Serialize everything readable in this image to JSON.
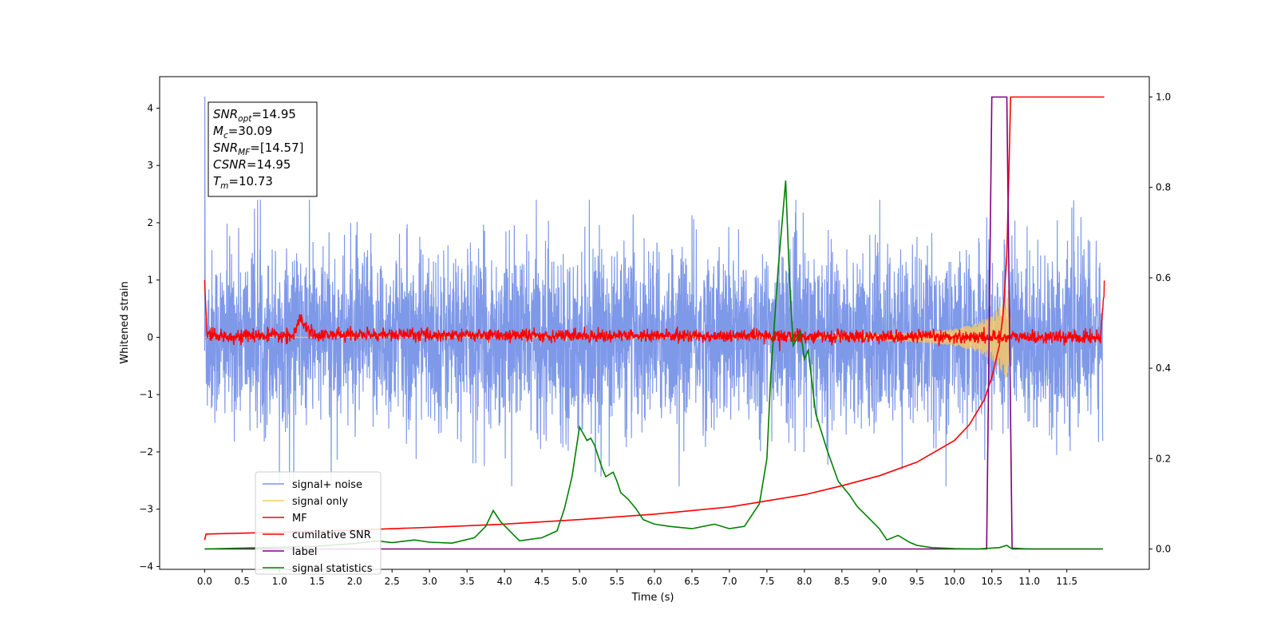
{
  "chart_data": {
    "type": "line",
    "xlabel": "Time (s)",
    "ylabel": "Whitened strain",
    "xlim": [
      -0.6,
      12.6
    ],
    "ylim_left": [
      -4.05,
      4.55
    ],
    "ylim_right": [
      -0.045,
      1.045
    ],
    "x_ticks": [
      "0.0",
      "0.5",
      "1.0",
      "1.5",
      "2.0",
      "2.5",
      "3.0",
      "3.5",
      "4.0",
      "4.5",
      "5.0",
      "5.5",
      "6.0",
      "6.5",
      "7.0",
      "7.5",
      "8.0",
      "8.5",
      "9.0",
      "9.5",
      "10.0",
      "10.5",
      "11.0",
      "11.5"
    ],
    "y_ticks_left": [
      "4",
      "3",
      "2",
      "1",
      "0",
      "−1",
      "−2",
      "−3",
      "−4"
    ],
    "y_ticks_right": [
      "1.0",
      "0.8",
      "0.6",
      "0.4",
      "0.2",
      "0.0"
    ],
    "grid": false,
    "legend_position": "lower-left",
    "annotations": [
      {
        "sym": "SNR",
        "sub": "opt",
        "text": "=14.95"
      },
      {
        "sym": "M",
        "sub": "c",
        "text": "=30.09"
      },
      {
        "sym": "SNR",
        "sub": "MF",
        "text": "=[14.57]"
      },
      {
        "sym": "CSNR",
        "sub": "",
        "text": "=14.95"
      },
      {
        "sym": "T",
        "sub": "m",
        "text": "=10.73"
      }
    ],
    "series": [
      {
        "name": "signal+ noise",
        "axis": "left",
        "color": "#7893e8",
        "description_values": {
          "x_range": [
            0,
            11.98
          ],
          "noise_std": 0.75,
          "approx_max": 2.4,
          "approx_min": -2.6,
          "start_spike": 4.2
        }
      },
      {
        "name": "signal only",
        "axis": "left",
        "color": "#f5c869",
        "x": [
          0,
          8.0,
          9.0,
          9.5,
          10.0,
          10.3,
          10.5,
          10.6,
          10.7,
          10.73,
          10.75
        ],
        "amplitude": [
          0,
          0.02,
          0.05,
          0.08,
          0.15,
          0.25,
          0.4,
          0.55,
          0.75,
          0.9,
          0
        ]
      },
      {
        "name": "MF",
        "axis": "left",
        "color": "#ff0000",
        "x": [
          0.0,
          0.01,
          0.03,
          0.1,
          1.2,
          1.27,
          1.32,
          1.45,
          11.95,
          11.98,
          12.0
        ],
        "y": [
          1.0,
          0.7,
          0.05,
          0.02,
          0.03,
          0.35,
          0.2,
          0.05,
          0.0,
          0.5,
          0.95
        ]
      },
      {
        "name": "cumilative SNR",
        "axis": "right",
        "color": "#ff0000",
        "x": [
          0.0,
          0.02,
          1.0,
          2.0,
          3.0,
          4.0,
          5.0,
          6.0,
          7.0,
          8.0,
          8.5,
          9.0,
          9.5,
          10.0,
          10.2,
          10.4,
          10.5,
          10.6,
          10.65,
          10.7,
          10.73,
          10.75,
          11.0,
          12.0
        ],
        "y": [
          0.02,
          0.033,
          0.037,
          0.042,
          0.048,
          0.055,
          0.065,
          0.077,
          0.093,
          0.12,
          0.14,
          0.162,
          0.192,
          0.24,
          0.275,
          0.33,
          0.38,
          0.45,
          0.52,
          0.65,
          0.85,
          1.0,
          1.0,
          1.0
        ]
      },
      {
        "name": "label",
        "axis": "right",
        "color": "#800080",
        "x": [
          0.0,
          10.43,
          10.5,
          10.7,
          10.77,
          11.98
        ],
        "y": [
          0.0,
          0.0,
          1.0,
          1.0,
          0.0,
          0.0
        ]
      },
      {
        "name": "signal statistics",
        "axis": "right",
        "color": "#008000",
        "x": [
          0.0,
          0.5,
          1.0,
          1.5,
          2.0,
          2.3,
          2.5,
          2.8,
          3.0,
          3.3,
          3.6,
          3.75,
          3.85,
          3.95,
          4.2,
          4.5,
          4.7,
          4.8,
          4.9,
          5.0,
          5.1,
          5.15,
          5.2,
          5.3,
          5.35,
          5.45,
          5.5,
          5.55,
          5.65,
          5.75,
          5.85,
          6.0,
          6.2,
          6.5,
          6.8,
          7.0,
          7.2,
          7.4,
          7.5,
          7.55,
          7.65,
          7.75,
          7.8,
          7.85,
          7.95,
          8.0,
          8.05,
          8.15,
          8.3,
          8.45,
          8.6,
          8.7,
          8.85,
          9.0,
          9.1,
          9.25,
          9.4,
          9.5,
          9.7,
          10.0,
          10.3,
          10.6,
          10.7,
          10.75,
          11.0,
          11.98
        ],
        "y": [
          0.0,
          0.002,
          0.004,
          0.006,
          0.012,
          0.018,
          0.014,
          0.02,
          0.015,
          0.013,
          0.025,
          0.05,
          0.085,
          0.06,
          0.018,
          0.025,
          0.04,
          0.09,
          0.16,
          0.27,
          0.24,
          0.245,
          0.23,
          0.18,
          0.16,
          0.17,
          0.15,
          0.125,
          0.11,
          0.09,
          0.065,
          0.055,
          0.05,
          0.045,
          0.055,
          0.045,
          0.05,
          0.1,
          0.2,
          0.38,
          0.62,
          0.815,
          0.6,
          0.45,
          0.48,
          0.42,
          0.44,
          0.3,
          0.22,
          0.15,
          0.12,
          0.095,
          0.07,
          0.045,
          0.02,
          0.03,
          0.015,
          0.008,
          0.003,
          0.001,
          0.0,
          0.003,
          0.008,
          0.002,
          0.0,
          0.0
        ]
      }
    ]
  }
}
